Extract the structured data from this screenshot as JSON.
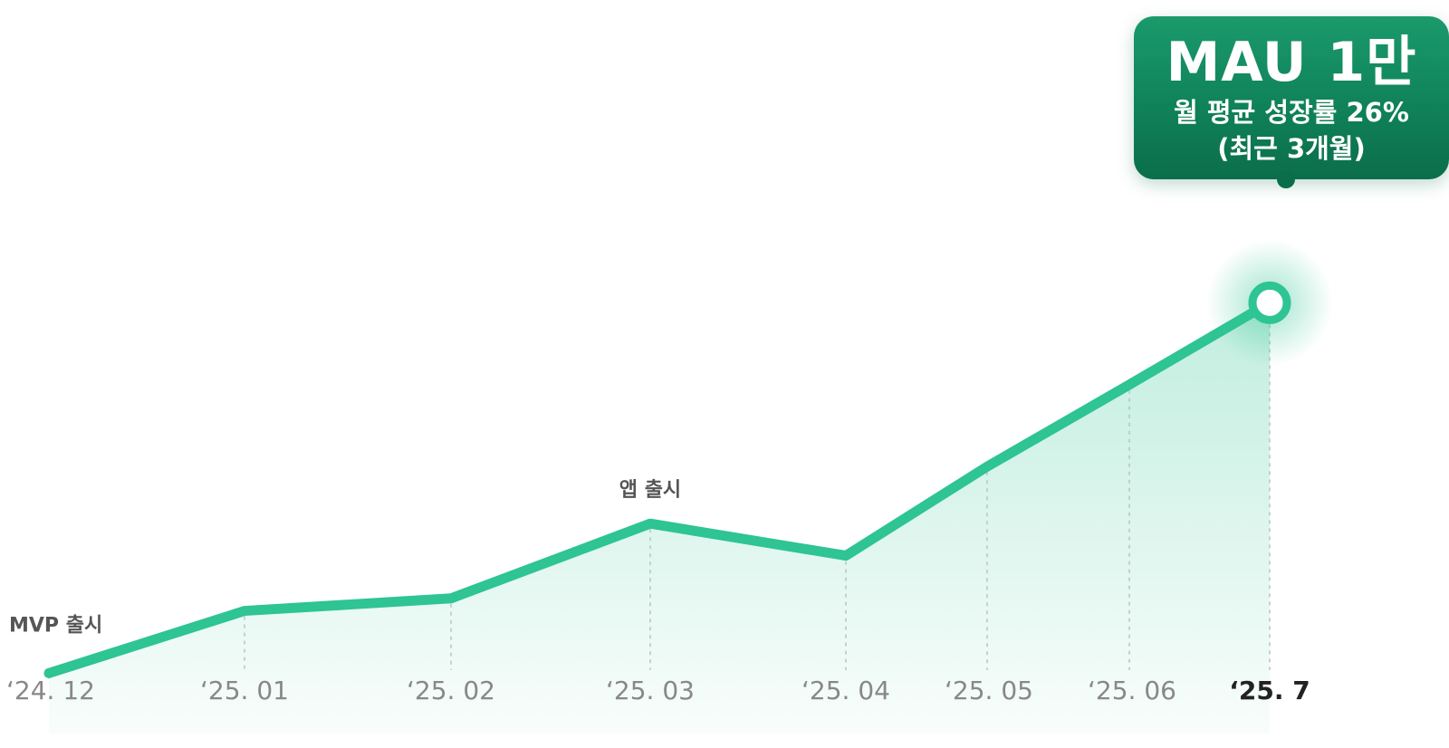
{
  "chart_data": {
    "type": "line",
    "categories": [
      "‘24. 12",
      "‘25. 01",
      "‘25. 02",
      "‘25. 03",
      "‘25. 04",
      "‘25. 05",
      "‘25. 06",
      "‘25. 7"
    ],
    "values": [
      1100,
      2850,
      3200,
      5300,
      4400,
      6900,
      9200,
      11500
    ],
    "highlight_index": 7,
    "annotations": [
      {
        "index": 0,
        "text": "MVP 출시"
      },
      {
        "index": 3,
        "text": "앱 출시"
      }
    ],
    "callout": {
      "index": 7,
      "title": "MAU 1만",
      "line1": "월 평균 성장률 26%",
      "line2": "(최근 3개월)"
    },
    "ylim": [
      -1000,
      20000
    ],
    "grid": "dashed vertical",
    "colors": {
      "line": "#2ec493",
      "area": "#c6f0e0",
      "tooltip": "#0f8058"
    }
  }
}
